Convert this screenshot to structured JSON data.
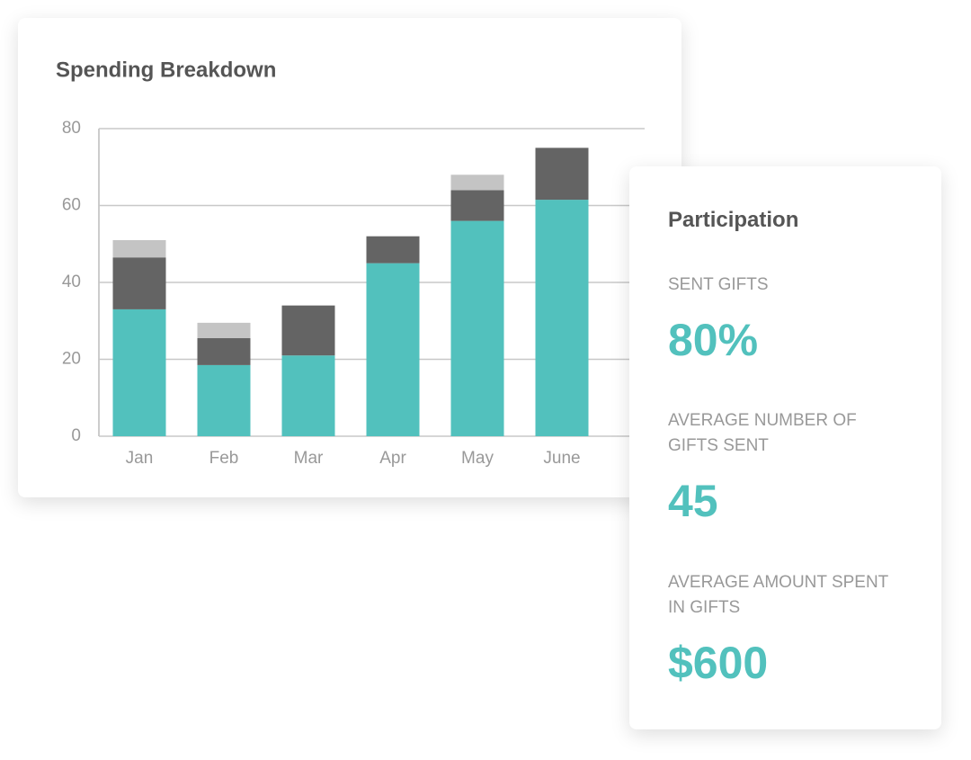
{
  "chart_data": {
    "type": "stacked_bar",
    "title": "Spending Breakdown",
    "categories": [
      "Jan",
      "Feb",
      "Mar",
      "Apr",
      "May",
      "June"
    ],
    "series": [
      {
        "color": "#52c1bd",
        "values": [
          33,
          18.5,
          21,
          45,
          56,
          61.5
        ]
      },
      {
        "color": "#646464",
        "values": [
          13.5,
          7,
          13,
          7,
          8,
          13.5
        ]
      },
      {
        "color": "#c4c4c4",
        "values": [
          4.5,
          4,
          0,
          0,
          4,
          0
        ]
      }
    ],
    "ylim": [
      0,
      80
    ],
    "yticks": [
      0,
      20,
      40,
      60,
      80
    ],
    "grid": true
  },
  "participation": {
    "title": "Participation",
    "stats": [
      {
        "label": "SENT GIFTS",
        "value": "80%"
      },
      {
        "label": "AVERAGE NUMBER OF GIFTS SENT",
        "value": "45"
      },
      {
        "label": "AVERAGE AMOUNT SPENT IN GIFTS",
        "value": "$600"
      }
    ]
  }
}
